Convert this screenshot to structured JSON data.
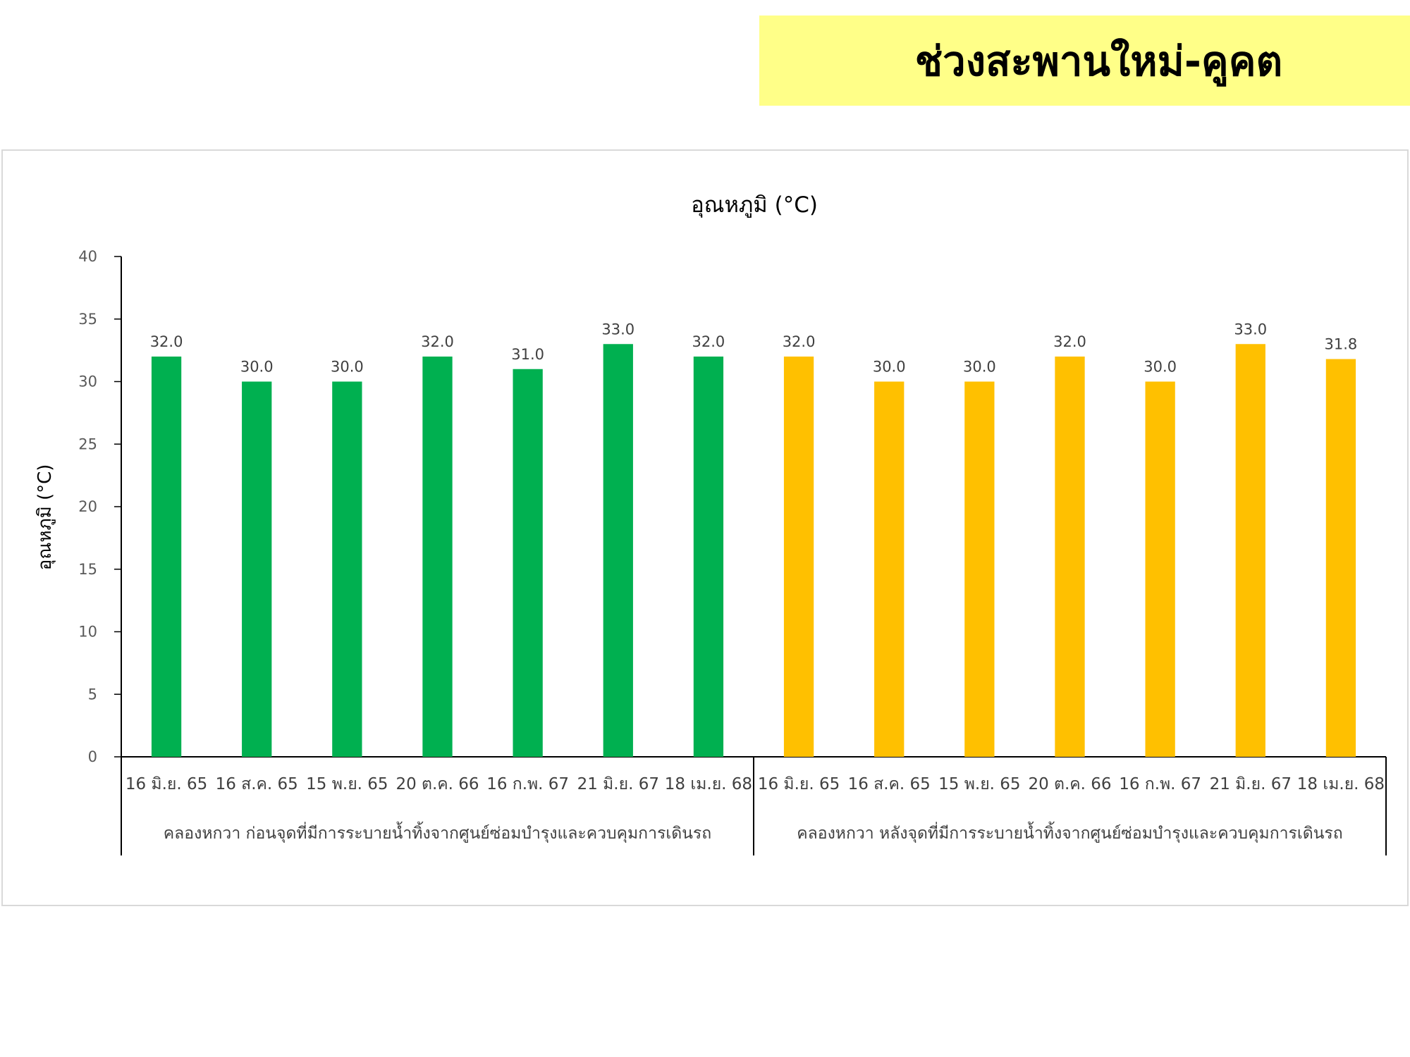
{
  "header": {
    "title": "ช่วงสะพานใหม่-คูคต"
  },
  "chart_data": {
    "type": "bar",
    "title": "อุณหภูมิ (°C)",
    "ylabel": "อุณหภูมิ (°C)",
    "xlabel": "",
    "ylim": [
      0,
      40
    ],
    "yticks": [
      0,
      5,
      10,
      15,
      20,
      25,
      30,
      35,
      40
    ],
    "grid": false,
    "legend": "none",
    "groups": [
      {
        "name": "คลองหกวา ก่อนจุดที่มีการระบายน้ำทิ้งจากศูนย์ซ่อมบำรุงและควบคุมการเดินรถ",
        "color": "#00b050",
        "categories": [
          "16 มิ.ย. 65",
          "16 ส.ค. 65",
          "15 พ.ย. 65",
          "20 ต.ค. 66",
          "16 ก.พ. 67",
          "21 มิ.ย. 67",
          "18 เม.ย. 68"
        ],
        "values": [
          32.0,
          30.0,
          30.0,
          32.0,
          31.0,
          33.0,
          32.0
        ],
        "labels": [
          "32.0",
          "30.0",
          "30.0",
          "32.0",
          "31.0",
          "33.0",
          "32.0"
        ]
      },
      {
        "name": "คลองหกวา หลังจุดที่มีการระบายน้ำทิ้งจากศูนย์ซ่อมบำรุงและควบคุมการเดินรถ",
        "color": "#ffc000",
        "categories": [
          "16 มิ.ย. 65",
          "16 ส.ค. 65",
          "15 พ.ย. 65",
          "20 ต.ค. 66",
          "16 ก.พ. 67",
          "21 มิ.ย. 67",
          "18 เม.ย. 68"
        ],
        "values": [
          32.0,
          30.0,
          30.0,
          32.0,
          30.0,
          33.0,
          31.8
        ],
        "labels": [
          "32.0",
          "30.0",
          "30.0",
          "32.0",
          "30.0",
          "33.0",
          "31.8"
        ]
      }
    ]
  }
}
